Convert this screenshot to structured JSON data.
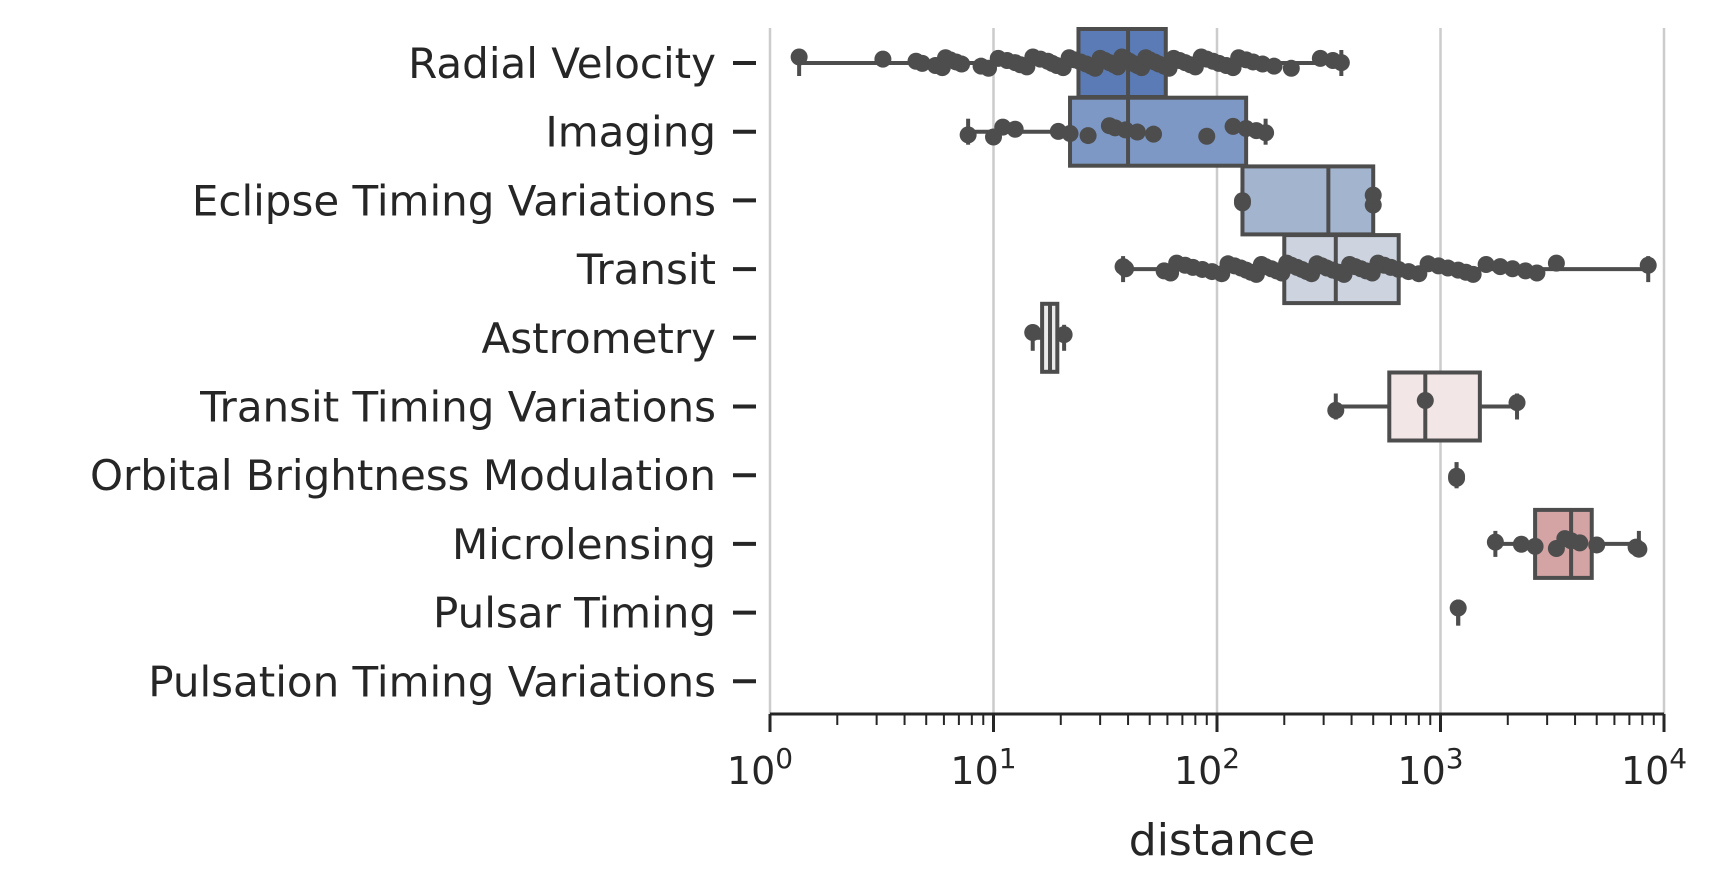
{
  "chart_data": {
    "type": "boxplot",
    "xscale": "log",
    "xlim": [
      1,
      10000
    ],
    "xlabel": "distance",
    "ylabel": "",
    "grid": "vertical",
    "x_ticks": [
      {
        "value": 1,
        "base": "10",
        "exp": "0"
      },
      {
        "value": 10,
        "base": "10",
        "exp": "1"
      },
      {
        "value": 100,
        "base": "10",
        "exp": "2"
      },
      {
        "value": 1000,
        "base": "10",
        "exp": "3"
      },
      {
        "value": 10000,
        "base": "10",
        "exp": "4"
      }
    ],
    "categories": [
      {
        "name": "Radial Velocity",
        "color": "#5a7bb5",
        "box": {
          "whislo": 1.35,
          "q1": 24,
          "med": 40,
          "q3": 59,
          "whishi": 360
        },
        "points": [
          1.35,
          3.2,
          4.5,
          4.8,
          5.5,
          5.9,
          6.1,
          6.4,
          6.8,
          7.2,
          8.8,
          9.5,
          10.5,
          11.5,
          12.5,
          13.2,
          14.1,
          15.0,
          16.2,
          17.5,
          18.3,
          19.2,
          20.5,
          21.8,
          23.0,
          24.5,
          26.0,
          27.3,
          28.5,
          30.0,
          31.5,
          33.0,
          34.6,
          36.0,
          37.5,
          39.0,
          40.5,
          42.0,
          44.0,
          46.0,
          48.0,
          50.0,
          52.5,
          55.0,
          58.0,
          61.0,
          64.0,
          68.0,
          72.0,
          76.0,
          80.0,
          85.0,
          90.0,
          96.0,
          102.0,
          110.0,
          118.0,
          125.0,
          135.0,
          145.0,
          160.0,
          180.0,
          215.0,
          290.0,
          330.0,
          360.0
        ]
      },
      {
        "name": "Imaging",
        "color": "#7d98c5",
        "box": {
          "whislo": 7.7,
          "q1": 22,
          "med": 40,
          "q3": 135,
          "whishi": 165
        },
        "points": [
          7.7,
          10.0,
          11.0,
          12.5,
          19.5,
          22.0,
          26.5,
          33.0,
          35.0,
          39.0,
          44.0,
          52.0,
          90.0,
          118.0,
          135.0,
          150.0,
          165.0
        ]
      },
      {
        "name": "Eclipse Timing Variations",
        "color": "#a3b4cf",
        "box": {
          "whislo": 130,
          "q1": 130,
          "med": 315,
          "q3": 500,
          "whishi": 500
        },
        "points": [
          130,
          130,
          500,
          500
        ]
      },
      {
        "name": "Transit",
        "color": "#cdd4e0",
        "box": {
          "whislo": 38,
          "q1": 200,
          "med": 340,
          "q3": 650,
          "whishi": 8500
        },
        "points": [
          38,
          39,
          58,
          62,
          66,
          72,
          78,
          86,
          95,
          105,
          112,
          120,
          128,
          135,
          142,
          150,
          158,
          165,
          175,
          185,
          195,
          205,
          215,
          228,
          240,
          252,
          265,
          280,
          295,
          310,
          330,
          350,
          370,
          392,
          415,
          440,
          465,
          495,
          525,
          560,
          600,
          650,
          720,
          800,
          880,
          980,
          1080,
          1200,
          1300,
          1400,
          1600,
          1850,
          2100,
          2400,
          2700,
          3300,
          8500
        ]
      },
      {
        "name": "Astrometry",
        "color": "#ebebeb",
        "box": {
          "whislo": 14.98,
          "q1": 16.5,
          "med": 17.9,
          "q3": 19.3,
          "whishi": 20.7
        },
        "points": [
          14.98,
          20.7
        ]
      },
      {
        "name": "Transit Timing Variations",
        "color": "#f2e6e6",
        "box": {
          "whislo": 340,
          "q1": 590,
          "med": 855,
          "q3": 1500,
          "whishi": 2200
        },
        "points": [
          340,
          855,
          2200
        ]
      },
      {
        "name": "Orbital Brightness Modulation",
        "color": "#e6cccc",
        "box": {
          "whislo": 1180,
          "q1": 1180,
          "med": 1180,
          "q3": 1180,
          "whishi": 1180
        },
        "points": [
          1180,
          1180
        ]
      },
      {
        "name": "Microlensing",
        "color": "#d4a3a3",
        "box": {
          "whislo": 1760,
          "q1": 2650,
          "med": 3840,
          "q3": 4750,
          "whishi": 7720
        },
        "points": [
          1760,
          2300,
          2650,
          3300,
          3600,
          3840,
          4200,
          5000,
          7500,
          7720
        ]
      },
      {
        "name": "Pulsar Timing",
        "color": "#c98b8b",
        "box": {
          "whislo": 1200,
          "q1": 1200,
          "med": 1200,
          "q3": 1200,
          "whishi": 1200
        },
        "points": [
          1200
        ]
      },
      {
        "name": "Pulsation Timing Variations",
        "color": "#c07878",
        "box": null,
        "points": []
      }
    ]
  }
}
